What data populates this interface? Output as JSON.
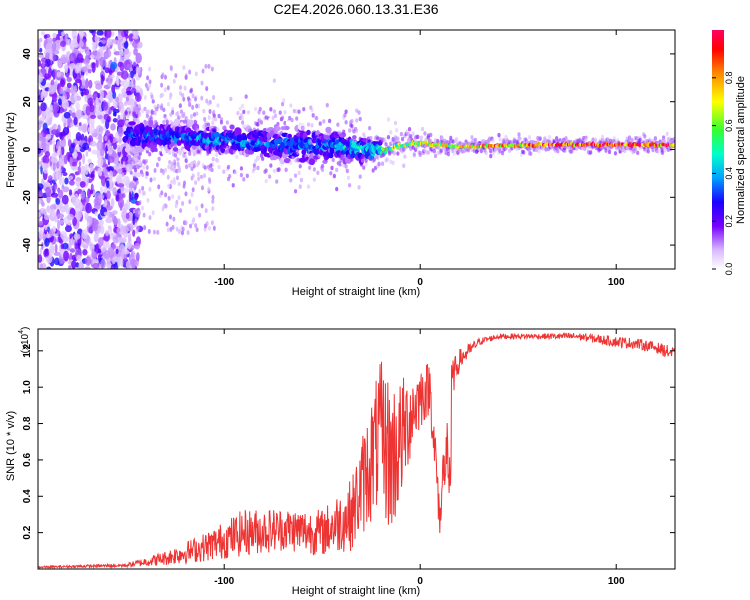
{
  "chart_data": [
    {
      "type": "heatmap",
      "title": "C2E4.2026.060.13.31.E36",
      "xlabel": "Height of straight line (km)",
      "ylabel": "Frequency (Hz)",
      "xlim": [
        -195,
        130
      ],
      "ylim": [
        -50,
        50
      ],
      "xticks": [
        -100,
        0,
        100
      ],
      "xtick_labels": [
        "-100",
        "0",
        "100"
      ],
      "yticks": [
        -40,
        -20,
        0,
        20,
        40
      ],
      "ytick_labels": [
        "-40",
        "-20",
        "0",
        "20",
        "40"
      ],
      "grid": false,
      "colorbar": {
        "label": "Normalized spectral amplitude",
        "range": [
          0,
          1
        ],
        "ticks": [
          0.0,
          0.2,
          0.4,
          0.6,
          0.8
        ],
        "tick_labels": [
          "0.0",
          "0.2",
          "0.4",
          "0.6",
          "0.8"
        ],
        "colormap": [
          "#ffffff",
          "#7700ff",
          "#0000ff",
          "#00ccff",
          "#00ff66",
          "#ffff00",
          "#ff7700",
          "#ff0000",
          "#ff0066"
        ]
      },
      "band": {
        "description_points_x": [
          -150,
          -120,
          -90,
          -60,
          -40,
          -20,
          0,
          20,
          60,
          100,
          130
        ],
        "center_hz": [
          6,
          5,
          3,
          2,
          1,
          0,
          3,
          1,
          2,
          2,
          2
        ],
        "half_width_hz": [
          6,
          5,
          5,
          6,
          5,
          3,
          1.5,
          1,
          1,
          1,
          1
        ],
        "amplitude": [
          0.35,
          0.4,
          0.4,
          0.4,
          0.45,
          0.55,
          0.7,
          0.75,
          0.85,
          0.95,
          0.9
        ]
      }
    },
    {
      "type": "line",
      "title": "",
      "xlabel": "Height of straight line (km)",
      "ylabel": "SNR (10 * v/v)",
      "scale_label": "(x10",
      "scale_exponent": "4",
      "scale_suffix": ")",
      "xlim": [
        -195,
        130
      ],
      "ylim": [
        0,
        1.32
      ],
      "xticks": [
        -100,
        0,
        100
      ],
      "xtick_labels": [
        "-100",
        "0",
        "100"
      ],
      "yticks": [
        0.2,
        0.4,
        0.6,
        0.8,
        1.0,
        1.2
      ],
      "ytick_labels": [
        "0.2",
        "0.4",
        "0.6",
        "0.8",
        "1.0",
        "1.2"
      ],
      "grid": false,
      "series": [
        {
          "name": "SNR",
          "color": "#ee3333",
          "x": [
            -195,
            -150,
            -130,
            -110,
            -90,
            -70,
            -50,
            -35,
            -25,
            -20,
            -15,
            -10,
            -5,
            0,
            5,
            10,
            15,
            20,
            25,
            30,
            40,
            60,
            80,
            100,
            110,
            120,
            130
          ],
          "y": [
            0.01,
            0.02,
            0.06,
            0.12,
            0.2,
            0.22,
            0.2,
            0.3,
            0.6,
            0.75,
            0.6,
            0.7,
            0.85,
            0.95,
            1.0,
            0.3,
            1.0,
            1.15,
            1.2,
            1.25,
            1.28,
            1.28,
            1.28,
            1.25,
            1.24,
            1.22,
            1.18
          ],
          "noise": [
            0.005,
            0.01,
            0.04,
            0.08,
            0.13,
            0.12,
            0.13,
            0.2,
            0.35,
            0.4,
            0.45,
            0.35,
            0.25,
            0.18,
            0.15,
            0.15,
            0.12,
            0.06,
            0.04,
            0.02,
            0.015,
            0.015,
            0.02,
            0.03,
            0.03,
            0.03,
            0.04
          ]
        }
      ]
    }
  ]
}
